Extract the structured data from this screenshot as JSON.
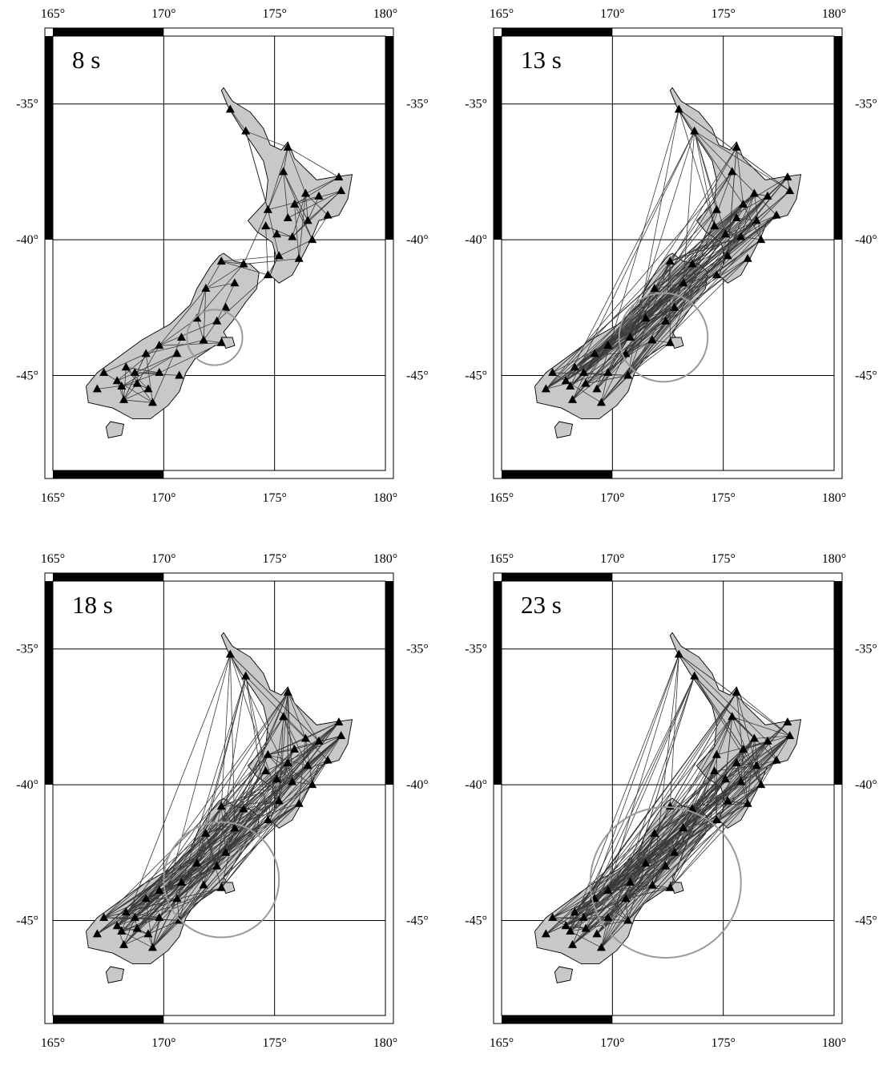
{
  "map": {
    "lon_ticks": [
      "165°",
      "170°",
      "175°",
      "180°"
    ],
    "lat_ticks": [
      "-35°",
      "-40°",
      "-45°"
    ],
    "lon_range": [
      165,
      180
    ],
    "lat_range": [
      -48.5,
      -32.5
    ],
    "colors": {
      "land": "#c8c8c8",
      "coast": "#000000",
      "path": "#3a3a3a",
      "circle": "#9a9a9a",
      "station": "#000000",
      "grid": "#000000"
    }
  },
  "panels": [
    {
      "period": "8 s",
      "circle": {
        "lon": 172.3,
        "lat": -43.6,
        "radius_deg": 1.25
      },
      "path_count": 90
    },
    {
      "period": "13 s",
      "circle": {
        "lon": 172.3,
        "lat": -43.6,
        "radius_deg": 2.0
      },
      "path_count": 170
    },
    {
      "period": "18 s",
      "circle": {
        "lon": 172.6,
        "lat": -43.5,
        "radius_deg": 2.6
      },
      "path_count": 210
    },
    {
      "period": "23 s",
      "circle": {
        "lon": 172.4,
        "lat": -43.6,
        "radius_deg": 3.4
      },
      "path_count": 230
    }
  ],
  "stations": [
    [
      173.0,
      -35.2
    ],
    [
      173.7,
      -36.0
    ],
    [
      175.6,
      -36.6
    ],
    [
      175.4,
      -37.5
    ],
    [
      177.9,
      -37.7
    ],
    [
      178.0,
      -38.2
    ],
    [
      177.0,
      -38.4
    ],
    [
      176.4,
      -38.3
    ],
    [
      175.9,
      -38.7
    ],
    [
      174.7,
      -38.9
    ],
    [
      175.6,
      -39.2
    ],
    [
      176.5,
      -39.3
    ],
    [
      177.4,
      -39.1
    ],
    [
      174.6,
      -39.5
    ],
    [
      175.1,
      -39.8
    ],
    [
      175.8,
      -39.9
    ],
    [
      176.7,
      -40.0
    ],
    [
      175.2,
      -40.6
    ],
    [
      176.1,
      -40.7
    ],
    [
      174.7,
      -41.3
    ],
    [
      173.6,
      -40.9
    ],
    [
      172.6,
      -40.8
    ],
    [
      171.9,
      -41.8
    ],
    [
      173.2,
      -41.6
    ],
    [
      172.8,
      -42.5
    ],
    [
      171.5,
      -42.9
    ],
    [
      172.4,
      -43.0
    ],
    [
      170.8,
      -43.6
    ],
    [
      171.8,
      -43.7
    ],
    [
      172.6,
      -43.8
    ],
    [
      169.8,
      -43.9
    ],
    [
      170.6,
      -44.2
    ],
    [
      169.2,
      -44.2
    ],
    [
      168.3,
      -44.7
    ],
    [
      167.3,
      -44.9
    ],
    [
      168.7,
      -44.9
    ],
    [
      169.8,
      -44.9
    ],
    [
      170.7,
      -45.0
    ],
    [
      167.9,
      -45.2
    ],
    [
      168.8,
      -45.3
    ],
    [
      169.3,
      -45.5
    ],
    [
      168.1,
      -45.4
    ],
    [
      167.0,
      -45.5
    ],
    [
      168.2,
      -45.9
    ],
    [
      169.5,
      -46.0
    ]
  ]
}
